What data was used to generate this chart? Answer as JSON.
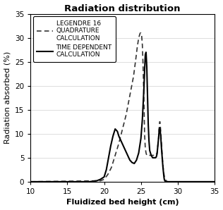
{
  "title": "Radiation distribution",
  "xlabel": "Fluidized bed height (cm)",
  "ylabel": "Radiation absorbed (%)",
  "xlim": [
    10,
    35
  ],
  "ylim": [
    0,
    35
  ],
  "xticks": [
    10,
    15,
    20,
    25,
    30,
    35
  ],
  "yticks": [
    0,
    5,
    10,
    15,
    20,
    25,
    30,
    35
  ],
  "line1_label": "TIME DEPENDENT\nCALCULATION",
  "line2_label": "LEGENDRE 16\nQUADRATURE\nCALCULATION",
  "line1_color": "#000000",
  "line2_color": "#333333",
  "background_color": "#ffffff",
  "title_fontsize": 9.5,
  "axis_label_fontsize": 8,
  "tick_fontsize": 7.5,
  "legend_fontsize": 6.5,
  "solid_x": [
    10.0,
    18.0,
    18.5,
    19.0,
    19.5,
    20.0,
    20.3,
    20.6,
    20.9,
    21.2,
    21.5,
    21.8,
    22.0,
    22.3,
    22.6,
    22.9,
    23.2,
    23.5,
    23.8,
    24.1,
    24.4,
    24.7,
    25.0,
    25.2,
    25.4,
    25.5,
    25.6,
    25.7,
    25.8,
    25.9,
    26.0,
    26.1,
    26.2,
    26.4,
    26.6,
    26.8,
    27.0,
    27.1,
    27.2,
    27.4,
    27.5,
    27.55,
    27.6,
    27.7,
    27.8,
    27.9,
    28.0,
    28.1,
    28.15,
    28.2,
    28.3,
    28.5,
    28.7,
    29.0,
    29.5,
    30.0,
    31.0,
    35.0
  ],
  "solid_y": [
    0.0,
    0.0,
    0.1,
    0.2,
    0.5,
    1.0,
    2.5,
    5.0,
    7.5,
    9.5,
    11.0,
    10.5,
    9.5,
    8.5,
    7.5,
    6.5,
    5.5,
    4.5,
    4.0,
    3.8,
    4.5,
    6.0,
    9.0,
    13.0,
    19.0,
    23.0,
    26.5,
    27.0,
    24.0,
    18.0,
    12.0,
    8.5,
    6.5,
    5.5,
    5.0,
    5.0,
    5.0,
    5.2,
    5.8,
    9.0,
    11.0,
    11.2,
    11.0,
    9.5,
    7.0,
    5.0,
    3.0,
    1.5,
    0.8,
    0.4,
    0.1,
    0.0,
    0.0,
    0.0,
    0.0,
    0.0,
    0.0,
    0.0
  ],
  "dashed_x": [
    10.0,
    19.5,
    20.0,
    20.5,
    21.0,
    21.5,
    22.0,
    22.5,
    23.0,
    23.5,
    24.0,
    24.3,
    24.5,
    24.7,
    24.9,
    25.0,
    25.1,
    25.2,
    25.3,
    25.4,
    25.45,
    25.5,
    25.6,
    25.7,
    25.8,
    25.9,
    26.0,
    26.2,
    26.5,
    26.8,
    27.0,
    27.2,
    27.4,
    27.5,
    27.55,
    27.6,
    27.7,
    27.8,
    27.9,
    28.0,
    28.1,
    28.2,
    28.3,
    28.5,
    28.7,
    29.0,
    29.5,
    30.0,
    35.0
  ],
  "dashed_y": [
    0.0,
    0.2,
    0.5,
    1.5,
    3.0,
    5.5,
    8.0,
    11.0,
    14.0,
    18.0,
    22.0,
    25.5,
    28.0,
    30.0,
    31.0,
    31.0,
    30.5,
    28.5,
    24.0,
    18.0,
    14.0,
    10.0,
    7.0,
    6.0,
    5.5,
    5.5,
    5.5,
    5.5,
    5.5,
    5.5,
    5.5,
    6.0,
    9.0,
    11.5,
    12.5,
    12.5,
    10.5,
    8.0,
    5.5,
    3.5,
    2.0,
    1.0,
    0.5,
    0.1,
    0.0,
    0.0,
    0.0,
    0.0,
    0.0
  ]
}
